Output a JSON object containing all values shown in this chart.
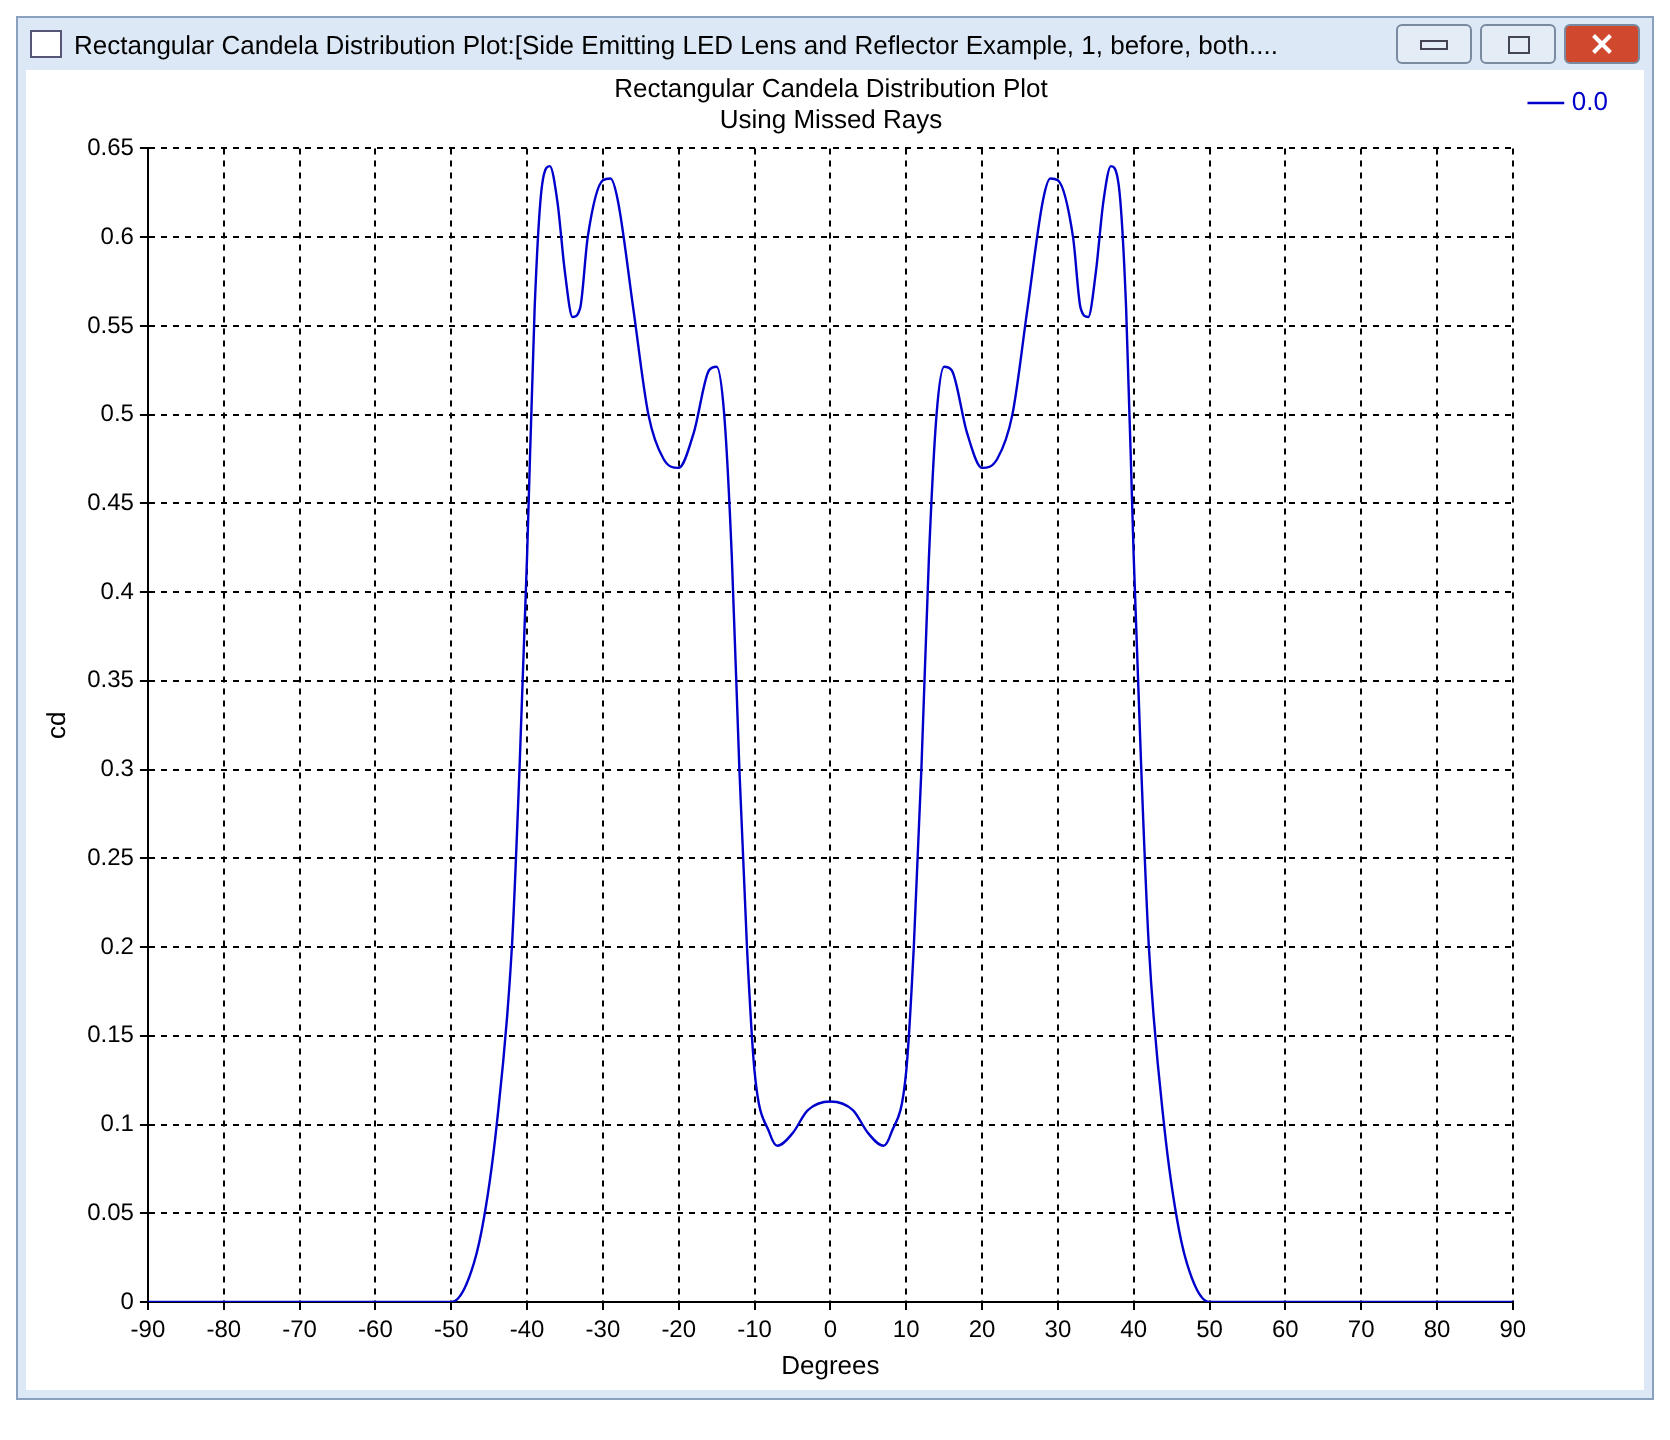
{
  "chart_data": {
    "type": "line",
    "title": "Rectangular Candela Distribution Plot",
    "subtitle": "Using Missed Rays",
    "xlabel": "Degrees",
    "ylabel": "cd",
    "annotations": [
      "Rectangular Candela Distribution Plot:[Side Emitting LED Lens and Reflector Example, 1, before, both...."
    ],
    "x": [
      -90,
      -50,
      -48,
      -46,
      -44,
      -42,
      -41,
      -40,
      -39,
      -38,
      -37,
      -36,
      -35,
      -34,
      -33,
      -32,
      -30,
      -29,
      -28,
      -26,
      -24,
      -22,
      -20,
      -18,
      -16,
      -15,
      -14,
      -13,
      -12,
      -11,
      -10,
      -8,
      -7,
      -5,
      -3,
      0,
      3,
      5,
      7,
      8,
      10,
      11,
      12,
      13,
      14,
      15,
      16,
      18,
      20,
      22,
      24,
      26,
      28,
      29,
      30,
      32,
      33,
      34,
      35,
      36,
      37,
      38,
      39,
      40,
      41,
      42,
      44,
      46,
      48,
      50,
      90
    ],
    "series": [
      {
        "name": "0.0",
        "color": "#0000cc",
        "values": [
          0,
          0,
          0.01,
          0.04,
          0.1,
          0.2,
          0.3,
          0.42,
          0.56,
          0.63,
          0.64,
          0.62,
          0.58,
          0.555,
          0.56,
          0.6,
          0.632,
          0.633,
          0.62,
          0.56,
          0.5,
          0.475,
          0.47,
          0.49,
          0.525,
          0.527,
          0.5,
          0.42,
          0.3,
          0.2,
          0.13,
          0.095,
          0.088,
          0.095,
          0.108,
          0.113,
          0.108,
          0.095,
          0.088,
          0.095,
          0.13,
          0.2,
          0.3,
          0.42,
          0.5,
          0.527,
          0.525,
          0.49,
          0.47,
          0.475,
          0.5,
          0.56,
          0.62,
          0.633,
          0.632,
          0.6,
          0.56,
          0.555,
          0.58,
          0.62,
          0.64,
          0.63,
          0.56,
          0.42,
          0.3,
          0.2,
          0.1,
          0.04,
          0.01,
          0,
          0
        ]
      }
    ],
    "xlim": [
      -90,
      90
    ],
    "xticks": [
      -90,
      -80,
      -70,
      -60,
      -50,
      -40,
      -30,
      -20,
      -10,
      0,
      10,
      20,
      30,
      40,
      50,
      60,
      70,
      80,
      90
    ],
    "ylim": [
      0,
      0.65
    ],
    "yticks": [
      0,
      0.05,
      0.1,
      0.15,
      0.2,
      0.25,
      0.3,
      0.35,
      0.4,
      0.45,
      0.5,
      0.55,
      0.6,
      0.65
    ],
    "grid": true,
    "legend": "top right",
    "marker": "none",
    "line_style": "solid"
  }
}
